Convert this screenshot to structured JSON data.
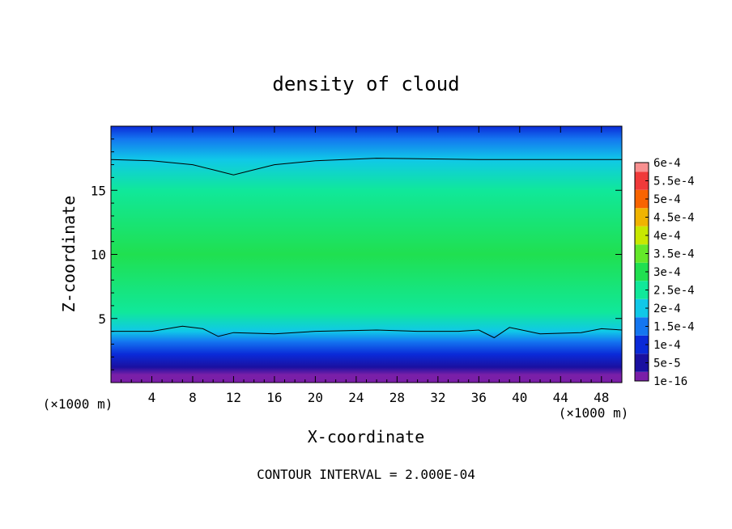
{
  "chart_data": {
    "type": "heatmap",
    "title": "density of cloud",
    "xlabel": "X-coordinate",
    "ylabel": "Z-coordinate",
    "x_unit": "(×1000 m)",
    "x_unit_right": "(×1000 m)",
    "xlim": [
      0,
      50
    ],
    "ylim": [
      0,
      20
    ],
    "x_ticks": [
      4,
      8,
      12,
      16,
      20,
      24,
      28,
      32,
      36,
      40,
      44,
      48
    ],
    "y_ticks": [
      5,
      10,
      15
    ],
    "footer": "CONTOUR INTERVAL = 2.000E-04",
    "colorbar": {
      "labels": [
        "1e-16",
        "5e-5",
        "1e-4",
        "1.5e-4",
        "2e-4",
        "2.5e-4",
        "3e-4",
        "3.5e-4",
        "4e-4",
        "4.5e-4",
        "5e-4",
        "5.5e-4",
        "6e-4"
      ],
      "colors": [
        "#7a1fa8",
        "#1a10a0",
        "#0a2ad8",
        "#1476f0",
        "#10c8e8",
        "#10e89a",
        "#20e050",
        "#64e82a",
        "#c8e800",
        "#f0b400",
        "#f86400",
        "#f03a3a",
        "#f89090"
      ]
    },
    "field_profile_z": [
      {
        "z": 0.6,
        "value": 1e-16
      },
      {
        "z": 1.2,
        "value": 5e-05
      },
      {
        "z": 2.2,
        "value": 0.0001
      },
      {
        "z": 3.2,
        "value": 0.00015
      },
      {
        "z": 4.0,
        "value": 0.0002
      },
      {
        "z": 5.5,
        "value": 0.00025
      },
      {
        "z": 10.0,
        "value": 0.0003
      },
      {
        "z": 15.0,
        "value": 0.00025
      },
      {
        "z": 17.4,
        "value": 0.0002
      },
      {
        "z": 19.0,
        "value": 0.00015
      },
      {
        "z": 20.0,
        "value": 0.0001
      }
    ],
    "contour_levels": [
      {
        "value": 0.0002,
        "points": [
          [
            0,
            17.4
          ],
          [
            4,
            17.3
          ],
          [
            8,
            17.0
          ],
          [
            10,
            16.6
          ],
          [
            12,
            16.2
          ],
          [
            14,
            16.6
          ],
          [
            16,
            17.0
          ],
          [
            20,
            17.3
          ],
          [
            26,
            17.5
          ],
          [
            36,
            17.4
          ],
          [
            44,
            17.4
          ],
          [
            50,
            17.4
          ]
        ]
      },
      {
        "value": 0.0002,
        "points": [
          [
            0,
            4.0
          ],
          [
            4,
            4.0
          ],
          [
            7,
            4.4
          ],
          [
            9,
            4.2
          ],
          [
            10.5,
            3.6
          ],
          [
            12,
            3.9
          ],
          [
            16,
            3.8
          ],
          [
            20,
            4.0
          ],
          [
            26,
            4.1
          ],
          [
            30,
            4.0
          ],
          [
            34,
            4.0
          ],
          [
            36,
            4.1
          ],
          [
            37.5,
            3.5
          ],
          [
            39,
            4.3
          ],
          [
            42,
            3.8
          ],
          [
            46,
            3.9
          ],
          [
            48,
            4.2
          ],
          [
            50,
            4.1
          ]
        ]
      }
    ]
  }
}
